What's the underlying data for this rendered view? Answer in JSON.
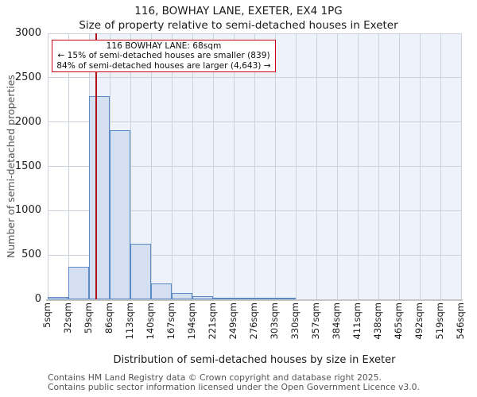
{
  "figure": {
    "title": "116, BOWHAY LANE, EXETER, EX4 1PG",
    "subtitle": "Size of property relative to semi-detached houses in Exeter"
  },
  "annotation": {
    "line1": "116 BOWHAY LANE: 68sqm",
    "line2": "← 15% of semi-detached houses are smaller (839)",
    "line3": "84% of semi-detached houses are larger (4,643) →"
  },
  "footer": {
    "line1": "Contains HM Land Registry data © Crown copyright and database right 2025.",
    "line2": "Contains public sector information licensed under the Open Government Licence v3.0."
  },
  "chart_data": {
    "type": "bar",
    "title": "116, BOWHAY LANE, EXETER, EX4 1PG",
    "subtitle": "Size of property relative to semi-detached houses in Exeter",
    "xlabel": "Distribution of semi-detached houses by size in Exeter",
    "ylabel": "Number of semi-detached properties",
    "categories": [
      "5sqm",
      "32sqm",
      "59sqm",
      "86sqm",
      "113sqm",
      "140sqm",
      "167sqm",
      "194sqm",
      "221sqm",
      "249sqm",
      "276sqm",
      "303sqm",
      "330sqm",
      "357sqm",
      "384sqm",
      "411sqm",
      "438sqm",
      "465sqm",
      "492sqm",
      "519sqm",
      "546sqm"
    ],
    "bin_edges_sqm": [
      5,
      32,
      59,
      86,
      113,
      140,
      167,
      194,
      221,
      249,
      276,
      303,
      330,
      357,
      384,
      411,
      438,
      465,
      492,
      519,
      546
    ],
    "values": [
      25,
      370,
      2290,
      1910,
      630,
      180,
      70,
      40,
      15,
      15,
      8,
      4,
      0,
      0,
      0,
      0,
      0,
      0,
      0,
      0
    ],
    "ylim": [
      0,
      3000
    ],
    "yticks": [
      0,
      500,
      1000,
      1500,
      2000,
      2500,
      3000
    ],
    "grid": true,
    "legend_position": "none",
    "marker": {
      "value_sqm": 68,
      "smaller_pct": 15,
      "smaller_count": 839,
      "larger_pct": 84,
      "larger_count": 4643
    },
    "shade_from_sqm": 59,
    "colors": {
      "bar_fill": "#d4e0f2",
      "bar_border": "#5b8bc7",
      "shade": "#eef2fb",
      "grid": "#ccd2dc",
      "marker_line": "#b01015",
      "annotation_border": "#cc0011"
    }
  }
}
